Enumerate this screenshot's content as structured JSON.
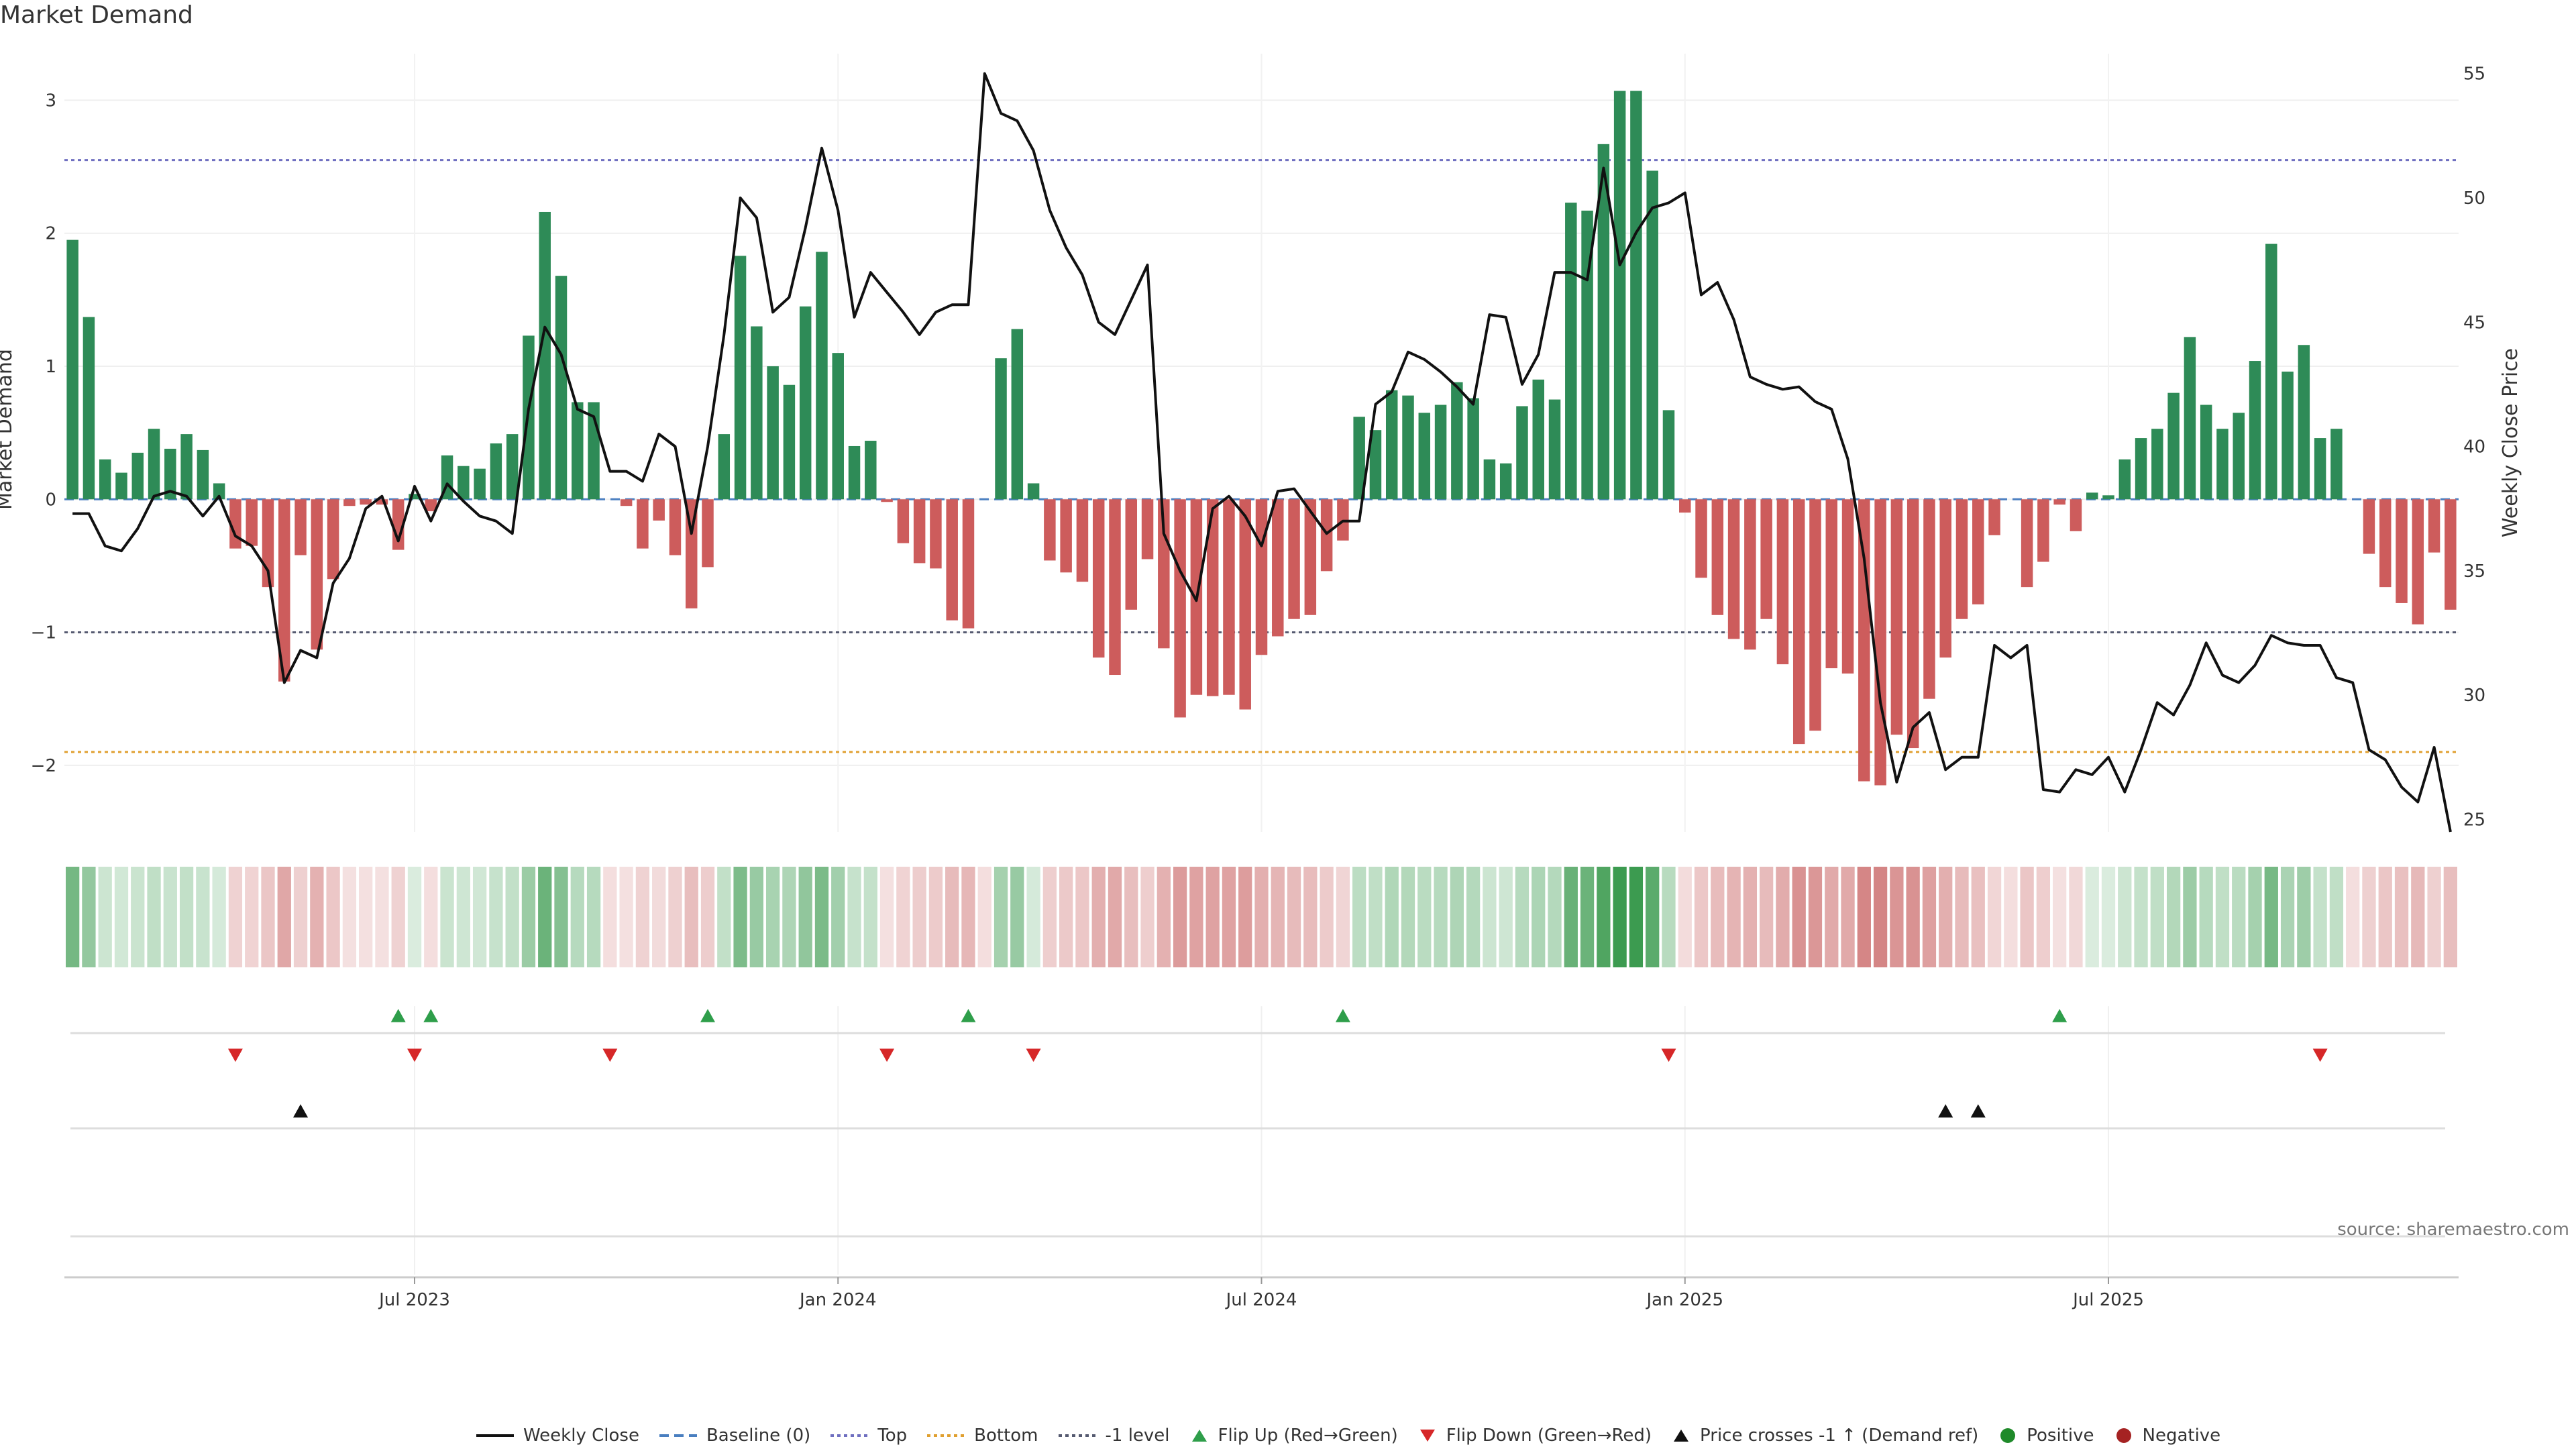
{
  "chart_data": {
    "type": "bar+line",
    "title": "Market Demand",
    "ylabel_left": "Market Demand",
    "ylabel_right": "Weekly Close Price",
    "ylim_left": [
      -2.5,
      3.35
    ],
    "ylim_right": [
      24.5,
      55.8
    ],
    "left_ticks": [
      3,
      2,
      1,
      0,
      -1,
      -2
    ],
    "left_tick_labels": [
      "3",
      "2",
      "1",
      "0",
      "−1",
      "−2"
    ],
    "right_ticks": [
      55,
      50,
      45,
      40,
      35,
      30,
      25
    ],
    "right_tick_labels": [
      "55",
      "50",
      "45",
      "40",
      "35",
      "30",
      "25"
    ],
    "x_tick_labels": [
      "Jul 2023",
      "Jan 2024",
      "Jul 2024",
      "Jan 2025",
      "Jul 2025"
    ],
    "x_tick_weeks": [
      21.5,
      47.5,
      73.5,
      99.5,
      125.5
    ],
    "levels": {
      "top": 2.55,
      "bottom": -1.9,
      "minus_one": -1.0,
      "baseline": 0
    },
    "demand": [
      1.95,
      1.37,
      0.3,
      0.2,
      0.35,
      0.53,
      0.38,
      0.49,
      0.37,
      0.12,
      -0.37,
      -0.35,
      -0.66,
      -1.37,
      -0.42,
      -1.13,
      -0.6,
      -0.05,
      -0.04,
      -0.04,
      -0.38,
      0.04,
      -0.09,
      0.33,
      0.25,
      0.23,
      0.42,
      0.49,
      1.23,
      2.16,
      1.68,
      0.73,
      0.73,
      0.0,
      -0.05,
      -0.37,
      -0.16,
      -0.42,
      -0.82,
      -0.51,
      0.49,
      1.83,
      1.3,
      1.0,
      0.86,
      1.45,
      1.86,
      1.1,
      0.4,
      0.44,
      -0.02,
      -0.33,
      -0.48,
      -0.52,
      -0.91,
      -0.97,
      0.0,
      1.06,
      1.28,
      0.12,
      -0.46,
      -0.55,
      -0.62,
      -1.19,
      -1.32,
      -0.83,
      -0.45,
      -1.12,
      -1.64,
      -1.47,
      -1.48,
      -1.47,
      -1.58,
      -1.17,
      -1.03,
      -0.9,
      -0.87,
      -0.54,
      -0.31,
      0.62,
      0.52,
      0.82,
      0.78,
      0.65,
      0.71,
      0.88,
      0.76,
      0.3,
      0.27,
      0.7,
      0.9,
      0.75,
      2.23,
      2.17,
      2.67,
      3.07,
      3.07,
      2.47,
      0.67,
      -0.1,
      -0.59,
      -0.87,
      -1.05,
      -1.13,
      -0.9,
      -1.24,
      -1.84,
      -1.74,
      -1.27,
      -1.31,
      -2.12,
      -2.15,
      -1.77,
      -1.87,
      -1.5,
      -1.19,
      -0.9,
      -0.79,
      -0.27,
      0.0,
      -0.66,
      -0.47,
      -0.04,
      -0.24,
      0.05,
      0.03,
      0.3,
      0.46,
      0.53,
      0.8,
      1.22,
      0.71,
      0.53,
      0.65,
      1.04,
      1.92,
      0.96,
      1.16,
      0.46,
      0.53,
      0.0,
      -0.41,
      -0.66,
      -0.78,
      -0.94,
      -0.4,
      -0.83
    ],
    "close": [
      37.3,
      37.3,
      36.0,
      35.8,
      36.7,
      38.0,
      38.2,
      38.0,
      37.2,
      38.0,
      36.4,
      36.0,
      35.0,
      30.5,
      31.8,
      31.5,
      34.5,
      35.5,
      37.5,
      38.0,
      36.2,
      38.4,
      37.0,
      38.5,
      37.8,
      37.2,
      37.0,
      36.5,
      41.5,
      44.8,
      43.7,
      41.5,
      41.2,
      39.0,
      39.0,
      38.6,
      40.5,
      40.0,
      36.5,
      40.0,
      44.5,
      50.0,
      49.2,
      45.4,
      46.0,
      48.8,
      52.0,
      49.5,
      45.2,
      47.0,
      46.2,
      45.4,
      44.5,
      45.4,
      45.7,
      45.7,
      55.0,
      53.4,
      53.1,
      51.9,
      49.5,
      48.0,
      46.9,
      45.0,
      44.5,
      45.9,
      47.3,
      36.5,
      35.0,
      33.8,
      37.5,
      38.0,
      37.2,
      36.0,
      38.2,
      38.3,
      37.4,
      36.5,
      37.0,
      37.0,
      41.7,
      42.2,
      43.8,
      43.5,
      43.0,
      42.4,
      41.7,
      45.3,
      45.2,
      42.5,
      43.7,
      47.0,
      47.0,
      46.7,
      51.2,
      47.3,
      48.6,
      49.6,
      49.8,
      50.2,
      46.1,
      46.6,
      45.1,
      42.8,
      42.5,
      42.3,
      42.4,
      41.8,
      41.5,
      39.5,
      35.5,
      29.7,
      26.5,
      28.7,
      29.3,
      27.0,
      27.5,
      27.5,
      32.0,
      31.5,
      32.0,
      26.2,
      26.1,
      27.0,
      26.8,
      27.5,
      26.1,
      27.8,
      29.7,
      29.2,
      30.4,
      32.1,
      30.8,
      30.5,
      31.2,
      32.4,
      32.1,
      32.0,
      32.0,
      30.7,
      30.5,
      27.8,
      27.4,
      26.3,
      25.7,
      27.9,
      24.5
    ],
    "flip_up_weeks": [
      20,
      22,
      39,
      55,
      78,
      122
    ],
    "flip_down_weeks": [
      10,
      21,
      33,
      50,
      59,
      98,
      138
    ],
    "price_cross_weeks": [
      14,
      115,
      117
    ],
    "source": "source: sharemaestro.com",
    "legend": [
      {
        "label": "Weekly Close",
        "kind": "line",
        "color": "#111111"
      },
      {
        "label": "Baseline (0)",
        "kind": "dash",
        "color": "#4a7fc0"
      },
      {
        "label": "Top",
        "kind": "dot",
        "color": "#6f6fc0"
      },
      {
        "label": "Bottom",
        "kind": "dot",
        "color": "#e0a030"
      },
      {
        "label": "-1 level",
        "kind": "dot",
        "color": "#555a70"
      },
      {
        "label": "Flip Up (Red→Green)",
        "kind": "tri-up",
        "color": "#2e9e4a"
      },
      {
        "label": "Flip Down (Green→Red)",
        "kind": "tri-down",
        "color": "#d62728"
      },
      {
        "label": "Price crosses -1 ↑ (Demand ref)",
        "kind": "tri-up",
        "color": "#111111"
      },
      {
        "label": "Positive",
        "kind": "circle",
        "color": "#1f8a2a"
      },
      {
        "label": "Negative",
        "kind": "circle",
        "color": "#a52222"
      }
    ],
    "colors": {
      "positive": "#2e8b57",
      "negative": "#cd5c5c",
      "heat_pos": "#3a9a4e",
      "heat_neg": "#c65c5c"
    }
  }
}
